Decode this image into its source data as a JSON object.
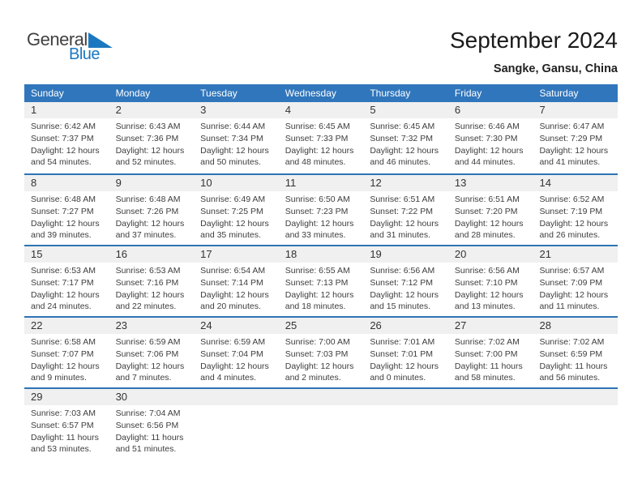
{
  "logo": {
    "part1": "General",
    "part2": "Blue"
  },
  "header": {
    "title": "September 2024",
    "subtitle": "Sangke, Gansu, China"
  },
  "weekdays": [
    "Sunday",
    "Monday",
    "Tuesday",
    "Wednesday",
    "Thursday",
    "Friday",
    "Saturday"
  ],
  "weeks": [
    [
      {
        "day": "1",
        "sunrise": "Sunrise: 6:42 AM",
        "sunset": "Sunset: 7:37 PM",
        "daylight": "Daylight: 12 hours and 54 minutes."
      },
      {
        "day": "2",
        "sunrise": "Sunrise: 6:43 AM",
        "sunset": "Sunset: 7:36 PM",
        "daylight": "Daylight: 12 hours and 52 minutes."
      },
      {
        "day": "3",
        "sunrise": "Sunrise: 6:44 AM",
        "sunset": "Sunset: 7:34 PM",
        "daylight": "Daylight: 12 hours and 50 minutes."
      },
      {
        "day": "4",
        "sunrise": "Sunrise: 6:45 AM",
        "sunset": "Sunset: 7:33 PM",
        "daylight": "Daylight: 12 hours and 48 minutes."
      },
      {
        "day": "5",
        "sunrise": "Sunrise: 6:45 AM",
        "sunset": "Sunset: 7:32 PM",
        "daylight": "Daylight: 12 hours and 46 minutes."
      },
      {
        "day": "6",
        "sunrise": "Sunrise: 6:46 AM",
        "sunset": "Sunset: 7:30 PM",
        "daylight": "Daylight: 12 hours and 44 minutes."
      },
      {
        "day": "7",
        "sunrise": "Sunrise: 6:47 AM",
        "sunset": "Sunset: 7:29 PM",
        "daylight": "Daylight: 12 hours and 41 minutes."
      }
    ],
    [
      {
        "day": "8",
        "sunrise": "Sunrise: 6:48 AM",
        "sunset": "Sunset: 7:27 PM",
        "daylight": "Daylight: 12 hours and 39 minutes."
      },
      {
        "day": "9",
        "sunrise": "Sunrise: 6:48 AM",
        "sunset": "Sunset: 7:26 PM",
        "daylight": "Daylight: 12 hours and 37 minutes."
      },
      {
        "day": "10",
        "sunrise": "Sunrise: 6:49 AM",
        "sunset": "Sunset: 7:25 PM",
        "daylight": "Daylight: 12 hours and 35 minutes."
      },
      {
        "day": "11",
        "sunrise": "Sunrise: 6:50 AM",
        "sunset": "Sunset: 7:23 PM",
        "daylight": "Daylight: 12 hours and 33 minutes."
      },
      {
        "day": "12",
        "sunrise": "Sunrise: 6:51 AM",
        "sunset": "Sunset: 7:22 PM",
        "daylight": "Daylight: 12 hours and 31 minutes."
      },
      {
        "day": "13",
        "sunrise": "Sunrise: 6:51 AM",
        "sunset": "Sunset: 7:20 PM",
        "daylight": "Daylight: 12 hours and 28 minutes."
      },
      {
        "day": "14",
        "sunrise": "Sunrise: 6:52 AM",
        "sunset": "Sunset: 7:19 PM",
        "daylight": "Daylight: 12 hours and 26 minutes."
      }
    ],
    [
      {
        "day": "15",
        "sunrise": "Sunrise: 6:53 AM",
        "sunset": "Sunset: 7:17 PM",
        "daylight": "Daylight: 12 hours and 24 minutes."
      },
      {
        "day": "16",
        "sunrise": "Sunrise: 6:53 AM",
        "sunset": "Sunset: 7:16 PM",
        "daylight": "Daylight: 12 hours and 22 minutes."
      },
      {
        "day": "17",
        "sunrise": "Sunrise: 6:54 AM",
        "sunset": "Sunset: 7:14 PM",
        "daylight": "Daylight: 12 hours and 20 minutes."
      },
      {
        "day": "18",
        "sunrise": "Sunrise: 6:55 AM",
        "sunset": "Sunset: 7:13 PM",
        "daylight": "Daylight: 12 hours and 18 minutes."
      },
      {
        "day": "19",
        "sunrise": "Sunrise: 6:56 AM",
        "sunset": "Sunset: 7:12 PM",
        "daylight": "Daylight: 12 hours and 15 minutes."
      },
      {
        "day": "20",
        "sunrise": "Sunrise: 6:56 AM",
        "sunset": "Sunset: 7:10 PM",
        "daylight": "Daylight: 12 hours and 13 minutes."
      },
      {
        "day": "21",
        "sunrise": "Sunrise: 6:57 AM",
        "sunset": "Sunset: 7:09 PM",
        "daylight": "Daylight: 12 hours and 11 minutes."
      }
    ],
    [
      {
        "day": "22",
        "sunrise": "Sunrise: 6:58 AM",
        "sunset": "Sunset: 7:07 PM",
        "daylight": "Daylight: 12 hours and 9 minutes."
      },
      {
        "day": "23",
        "sunrise": "Sunrise: 6:59 AM",
        "sunset": "Sunset: 7:06 PM",
        "daylight": "Daylight: 12 hours and 7 minutes."
      },
      {
        "day": "24",
        "sunrise": "Sunrise: 6:59 AM",
        "sunset": "Sunset: 7:04 PM",
        "daylight": "Daylight: 12 hours and 4 minutes."
      },
      {
        "day": "25",
        "sunrise": "Sunrise: 7:00 AM",
        "sunset": "Sunset: 7:03 PM",
        "daylight": "Daylight: 12 hours and 2 minutes."
      },
      {
        "day": "26",
        "sunrise": "Sunrise: 7:01 AM",
        "sunset": "Sunset: 7:01 PM",
        "daylight": "Daylight: 12 hours and 0 minutes."
      },
      {
        "day": "27",
        "sunrise": "Sunrise: 7:02 AM",
        "sunset": "Sunset: 7:00 PM",
        "daylight": "Daylight: 11 hours and 58 minutes."
      },
      {
        "day": "28",
        "sunrise": "Sunrise: 7:02 AM",
        "sunset": "Sunset: 6:59 PM",
        "daylight": "Daylight: 11 hours and 56 minutes."
      }
    ],
    [
      {
        "day": "29",
        "sunrise": "Sunrise: 7:03 AM",
        "sunset": "Sunset: 6:57 PM",
        "daylight": "Daylight: 11 hours and 53 minutes."
      },
      {
        "day": "30",
        "sunrise": "Sunrise: 7:04 AM",
        "sunset": "Sunset: 6:56 PM",
        "daylight": "Daylight: 11 hours and 51 minutes."
      },
      null,
      null,
      null,
      null,
      null
    ]
  ],
  "colors": {
    "header_blue": "#3076BC",
    "separator_blue": "#2E74B5",
    "band_gray": "#F0F0F0",
    "logo_blue": "#1B78C0"
  }
}
